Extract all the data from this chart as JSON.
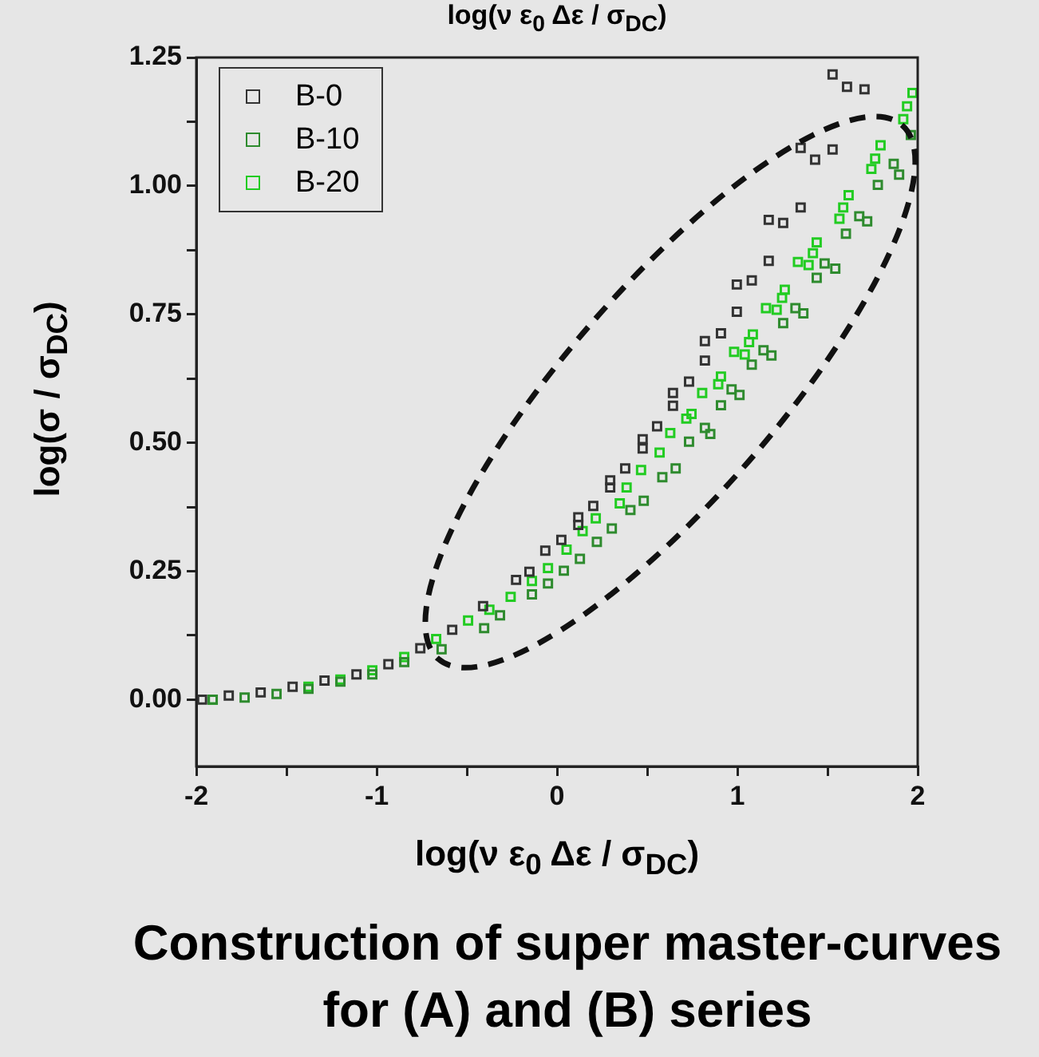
{
  "chart_data": {
    "type": "scatter",
    "title": "log(ν ε$_{0}$ Δε / σ$_{DC}$)",
    "xlabel": "log(ν ε$_{0}$ Δε / σ$_{DC}$)",
    "ylabel": "log(σ / σ$_{DC}$)",
    "annotations": [
      "Construction of super master-curves for (A) and (B) series"
    ],
    "xlim": [
      -2,
      2
    ],
    "ylim": [
      -0.13,
      1.25
    ],
    "xticks": [
      -2,
      {
        "value": -1.5,
        "label": null
      },
      -1,
      {
        "value": -0.5,
        "label": null
      },
      0,
      {
        "value": 0.5,
        "label": null
      },
      1,
      {
        "value": 1.5,
        "label": null
      },
      2
    ],
    "yticks": [
      {
        "value": 0,
        "label": "0.00"
      },
      {
        "value": 0.125,
        "label": null
      },
      {
        "value": 0.25,
        "label": "0.25"
      },
      {
        "value": 0.375,
        "label": null
      },
      {
        "value": 0.5,
        "label": "0.50"
      },
      {
        "value": 0.625,
        "label": null
      },
      {
        "value": 0.75,
        "label": "0.75"
      },
      {
        "value": 0.875,
        "label": null
      },
      {
        "value": 1,
        "label": "1.00"
      },
      {
        "value": 1.125,
        "label": null
      },
      {
        "value": 1.25,
        "label": "1.25"
      }
    ],
    "grid": false,
    "legend": "top left",
    "marker": "square",
    "series": [
      {
        "name": "B-0",
        "color": "#333333",
        "x": [
          1.528,
          1.608,
          1.705,
          1.351,
          1.528,
          1.431,
          1.351,
          1.174,
          1.254,
          1.174,
          0.997,
          1.08,
          0.997,
          0.82,
          0.909,
          0.82,
          0.732,
          0.643,
          0.643,
          0.555,
          0.475,
          0.475,
          0.378,
          0.295,
          0.295,
          0.201,
          0.118,
          0.118,
          0.024,
          -0.065,
          -0.153,
          -0.227,
          -0.41,
          -0.581,
          -0.758,
          -0.935,
          -1.112,
          -1.289,
          -1.466,
          -1.643,
          -1.82,
          -1.968
        ],
        "values": [
          1.217,
          1.193,
          1.188,
          1.074,
          1.071,
          1.051,
          0.958,
          0.934,
          0.928,
          0.854,
          0.808,
          0.816,
          0.755,
          0.698,
          0.713,
          0.66,
          0.619,
          0.597,
          0.572,
          0.532,
          0.507,
          0.489,
          0.45,
          0.427,
          0.413,
          0.377,
          0.355,
          0.34,
          0.311,
          0.29,
          0.249,
          0.233,
          0.182,
          0.136,
          0.1,
          0.069,
          0.049,
          0.037,
          0.025,
          0.014,
          0.008,
          0.0
        ]
      },
      {
        "name": "B-10",
        "color": "#2e8b2e",
        "x": [
          1.962,
          1.897,
          1.867,
          1.779,
          1.72,
          1.676,
          1.602,
          1.543,
          1.484,
          1.44,
          1.366,
          1.322,
          1.254,
          1.189,
          1.145,
          1.08,
          1.012,
          0.968,
          0.909,
          0.85,
          0.82,
          0.732,
          0.658,
          0.584,
          0.481,
          0.407,
          0.304,
          0.221,
          0.127,
          0.038,
          -0.05,
          -0.139,
          -0.316,
          -0.404,
          -0.64,
          -0.847,
          -1.024,
          -1.201,
          -1.378,
          -1.555,
          -1.732,
          -1.909
        ],
        "values": [
          1.099,
          1.022,
          1.043,
          1.002,
          0.931,
          0.941,
          0.907,
          0.839,
          0.849,
          0.821,
          0.752,
          0.762,
          0.733,
          0.67,
          0.68,
          0.652,
          0.593,
          0.604,
          0.573,
          0.517,
          0.529,
          0.502,
          0.45,
          0.433,
          0.387,
          0.369,
          0.333,
          0.307,
          0.274,
          0.251,
          0.226,
          0.205,
          0.164,
          0.139,
          0.098,
          0.073,
          0.049,
          0.035,
          0.021,
          0.011,
          0.004,
          0.0
        ]
      },
      {
        "name": "B-20",
        "color": "#22cc22",
        "x": [
          1.971,
          1.941,
          1.92,
          1.794,
          1.764,
          1.743,
          1.617,
          1.587,
          1.566,
          1.44,
          1.419,
          1.336,
          1.395,
          1.263,
          1.248,
          1.159,
          1.218,
          1.086,
          1.065,
          0.982,
          1.041,
          0.909,
          0.894,
          0.805,
          0.746,
          0.717,
          0.628,
          0.569,
          0.466,
          0.386,
          0.348,
          0.215,
          0.142,
          0.053,
          -0.05,
          -0.139,
          -0.257,
          -0.375,
          -0.493,
          -0.67,
          -0.847,
          -1.024,
          -1.201,
          -1.378,
          -1.555,
          -1.732,
          -1.909
        ],
        "values": [
          1.181,
          1.155,
          1.13,
          1.079,
          1.053,
          1.033,
          0.982,
          0.958,
          0.936,
          0.89,
          0.869,
          0.852,
          0.846,
          0.798,
          0.782,
          0.762,
          0.759,
          0.711,
          0.696,
          0.677,
          0.672,
          0.629,
          0.614,
          0.597,
          0.556,
          0.547,
          0.519,
          0.481,
          0.447,
          0.413,
          0.382,
          0.353,
          0.328,
          0.292,
          0.256,
          0.231,
          0.2,
          0.175,
          0.154,
          0.118,
          0.083,
          0.057,
          0.039,
          0.025,
          null,
          null,
          0.0
        ]
      }
    ]
  }
}
